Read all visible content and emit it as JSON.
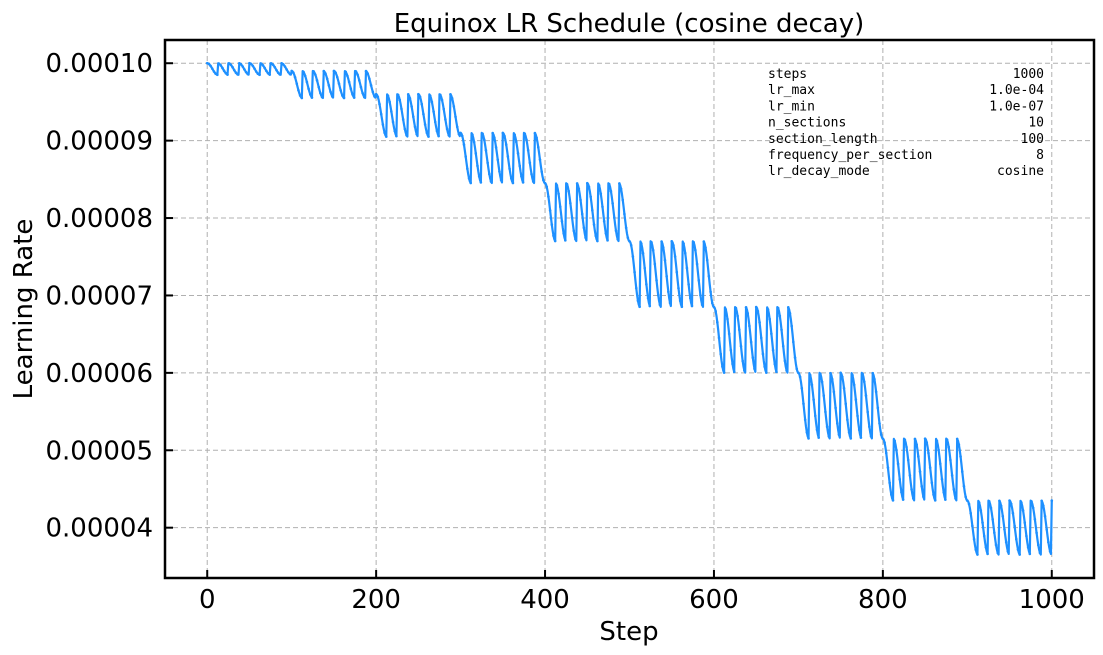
{
  "chart_data": {
    "type": "line",
    "title": "Equinox LR Schedule (cosine decay)",
    "xlabel": "Step",
    "ylabel": "Learning Rate",
    "xlim": [
      -50,
      1050
    ],
    "ylim": [
      3.35e-05,
      0.000103
    ],
    "xticks": [
      0,
      200,
      400,
      600,
      800,
      1000
    ],
    "xtick_labels": [
      "0",
      "200",
      "400",
      "600",
      "800",
      "1000"
    ],
    "yticks": [
      4e-05,
      5e-05,
      6e-05,
      7e-05,
      8e-05,
      9e-05,
      0.0001
    ],
    "ytick_labels": [
      "0.00004",
      "0.00005",
      "0.00006",
      "0.00007",
      "0.00008",
      "0.00009",
      "0.00010"
    ],
    "grid": true,
    "line_color": "#1e90ff",
    "series": [
      {
        "steps": 1000,
        "lr_max": 0.0001,
        "lr_min": 1e-07,
        "n_sections": 10,
        "section_length": 100,
        "frequency_per_section": 8,
        "section_peaks": [
          0.0001,
          9.9e-05,
          9.6e-05,
          9.1e-05,
          8.45e-05,
          7.7e-05,
          6.85e-05,
          6e-05,
          5.15e-05,
          4.35e-05
        ],
        "section_troughs": [
          9.85e-05,
          9.55e-05,
          9.05e-05,
          8.45e-05,
          7.7e-05,
          6.85e-05,
          6e-05,
          5.15e-05,
          4.35e-05,
          3.65e-05
        ]
      }
    ],
    "params_box": {
      "position": "top-right",
      "rows": [
        {
          "key": "steps",
          "value": "1000"
        },
        {
          "key": "lr_max",
          "value": "1.0e-04"
        },
        {
          "key": "lr_min",
          "value": "1.0e-07"
        },
        {
          "key": "n_sections",
          "value": "10"
        },
        {
          "key": "section_length",
          "value": "100"
        },
        {
          "key": "frequency_per_section",
          "value": "8"
        },
        {
          "key": "lr_decay_mode",
          "value": "cosine"
        }
      ]
    }
  }
}
